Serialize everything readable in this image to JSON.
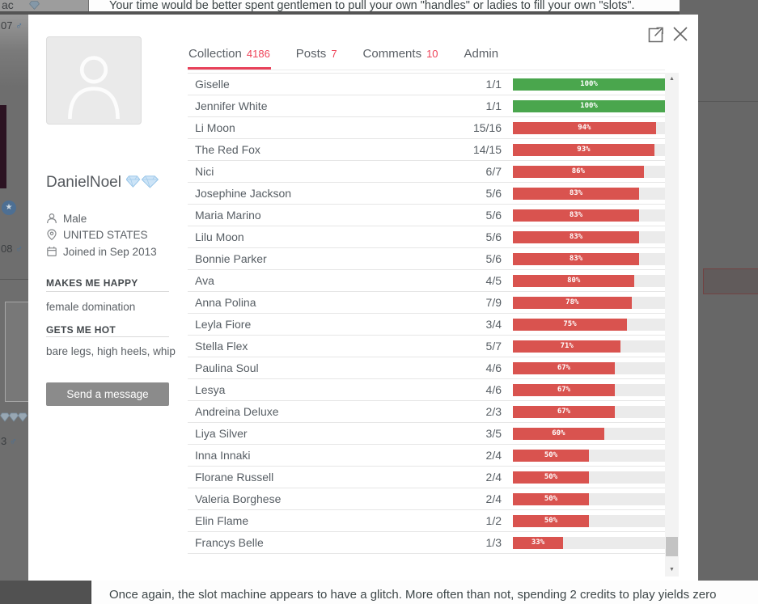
{
  "page_background": {
    "top_partial_user": "ac",
    "headline": "Your time would be better spent gentlemen to pull your own \"handles\" or ladies to fill your own \"slots\".",
    "bottom_text": "Once again, the slot machine appears to have a glitch. More often than not, spending 2 credits to play yields zero",
    "left_items": {
      "num1": "07",
      "num2": "08",
      "num3": "3",
      "male_symbol": "♂",
      "star": "★"
    }
  },
  "modal": {
    "profile": {
      "username": "DanielNoel",
      "gender": "Male",
      "country": "UNITED STATES",
      "joined": "Joined in Sep 2013",
      "makes_me_happy_label": "MAKES ME HAPPY",
      "makes_me_happy": "female domination",
      "gets_me_hot_label": "GETS ME HOT",
      "gets_me_hot": "bare legs, high heels, whip",
      "send_message_label": "Send a message"
    },
    "tabs": [
      {
        "label": "Collection",
        "count": "4186",
        "active": true
      },
      {
        "label": "Posts",
        "count": "7",
        "active": false
      },
      {
        "label": "Comments",
        "count": "10",
        "active": false
      },
      {
        "label": "Admin",
        "count": "",
        "active": false
      }
    ],
    "colors": {
      "bar_red": "#d9534f",
      "bar_green": "#4aa64d",
      "accent_red": "#e8415a"
    },
    "collection": {
      "rows": [
        {
          "name": "Giselle",
          "fraction": "1/1",
          "percent": 100,
          "color": "green"
        },
        {
          "name": "Jennifer White",
          "fraction": "1/1",
          "percent": 100,
          "color": "green"
        },
        {
          "name": "Li Moon",
          "fraction": "15/16",
          "percent": 94,
          "color": "red"
        },
        {
          "name": "The Red Fox",
          "fraction": "14/15",
          "percent": 93,
          "color": "red"
        },
        {
          "name": "Nici",
          "fraction": "6/7",
          "percent": 86,
          "color": "red"
        },
        {
          "name": "Josephine Jackson",
          "fraction": "5/6",
          "percent": 83,
          "color": "red"
        },
        {
          "name": "Maria Marino",
          "fraction": "5/6",
          "percent": 83,
          "color": "red"
        },
        {
          "name": "Lilu Moon",
          "fraction": "5/6",
          "percent": 83,
          "color": "red"
        },
        {
          "name": "Bonnie Parker",
          "fraction": "5/6",
          "percent": 83,
          "color": "red"
        },
        {
          "name": "Ava",
          "fraction": "4/5",
          "percent": 80,
          "color": "red"
        },
        {
          "name": "Anna Polina",
          "fraction": "7/9",
          "percent": 78,
          "color": "red"
        },
        {
          "name": "Leyla Fiore",
          "fraction": "3/4",
          "percent": 75,
          "color": "red"
        },
        {
          "name": "Stella Flex",
          "fraction": "5/7",
          "percent": 71,
          "color": "red"
        },
        {
          "name": "Paulina Soul",
          "fraction": "4/6",
          "percent": 67,
          "color": "red"
        },
        {
          "name": "Lesya",
          "fraction": "4/6",
          "percent": 67,
          "color": "red"
        },
        {
          "name": "Andreina Deluxe",
          "fraction": "2/3",
          "percent": 67,
          "color": "red"
        },
        {
          "name": "Liya Silver",
          "fraction": "3/5",
          "percent": 60,
          "color": "red"
        },
        {
          "name": "Inna Innaki",
          "fraction": "2/4",
          "percent": 50,
          "color": "red"
        },
        {
          "name": "Florane Russell",
          "fraction": "2/4",
          "percent": 50,
          "color": "red"
        },
        {
          "name": "Valeria Borghese",
          "fraction": "2/4",
          "percent": 50,
          "color": "red"
        },
        {
          "name": "Elin Flame",
          "fraction": "1/2",
          "percent": 50,
          "color": "red"
        },
        {
          "name": "Francys Belle",
          "fraction": "1/3",
          "percent": 33,
          "color": "red"
        }
      ]
    }
  }
}
